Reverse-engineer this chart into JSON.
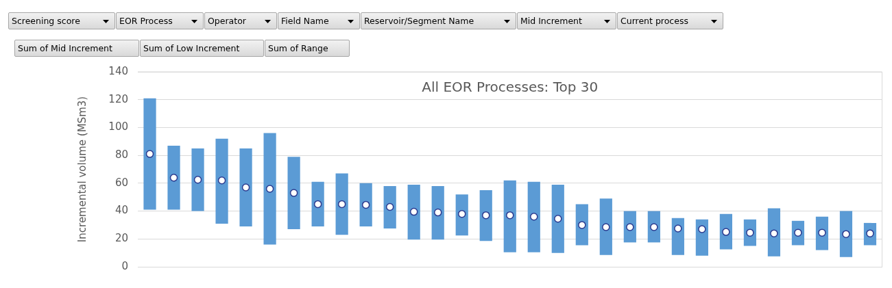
{
  "chart_data": {
    "type": "bar",
    "title": "All EOR Processes: Top 30",
    "ylabel": "Incremental volume (MSm3)",
    "categories": [
      null,
      null,
      null,
      null,
      null,
      null,
      null,
      null,
      null,
      null,
      null,
      null,
      null,
      null,
      null,
      null,
      null,
      null,
      null,
      null,
      null,
      null,
      null,
      null,
      null,
      null,
      null,
      null,
      null,
      null,
      null
    ],
    "series": [
      {
        "type": "bar",
        "color": "#5b9bd5",
        "base": [
          41,
          41,
          40,
          31,
          29,
          16,
          27,
          29,
          23,
          29,
          27.5,
          19.5,
          19.5,
          22.5,
          18.5,
          10.5,
          10.5,
          10,
          15.5,
          8.5,
          17.5,
          17.5,
          8.5,
          8,
          12.5,
          15,
          7.5,
          15.5,
          12,
          7,
          15.5
        ],
        "values": [
          80,
          46,
          45,
          61,
          56,
          80,
          52,
          32,
          44,
          31,
          30.5,
          39.5,
          38.5,
          29.5,
          36.5,
          51.5,
          50.5,
          49,
          29.5,
          40.5,
          22.5,
          22.5,
          26.5,
          26,
          25.5,
          19,
          34.5,
          17.5,
          24,
          33,
          16
        ]
      },
      {
        "type": "scatter",
        "color": "#ffffff",
        "values": [
          81,
          64,
          62.5,
          62,
          57,
          56,
          53,
          45,
          45,
          44.5,
          43,
          39.5,
          39,
          38,
          37,
          37,
          36,
          34.5,
          30,
          28.5,
          28.5,
          28.5,
          27.5,
          27,
          25,
          24.5,
          24,
          24.5,
          24.5,
          23.5,
          24
        ]
      }
    ],
    "marker": "circle",
    "ylim": [
      0,
      140
    ],
    "yticks": [
      0,
      20,
      40,
      60,
      80,
      100,
      120,
      140
    ],
    "grid": "y",
    "annotations": [
      "Screening score",
      "EOR Process",
      "Operator",
      "Field Name",
      "Reservoir/Segment Name",
      "Mid Increment",
      "Current process",
      "Sum of Mid Increment",
      "Sum of Low Increment",
      "Sum of Range"
    ]
  }
}
